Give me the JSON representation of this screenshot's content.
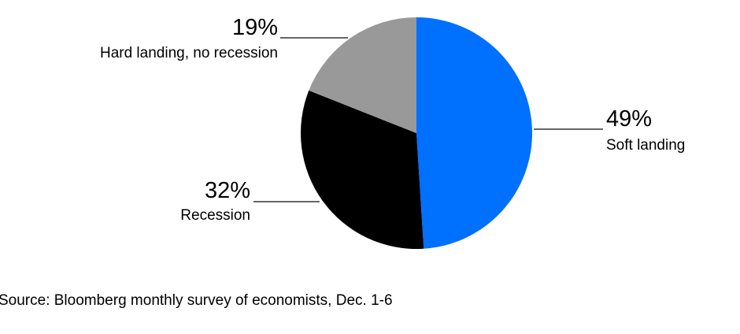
{
  "chart_data": {
    "type": "pie",
    "title": "",
    "slices": [
      {
        "label": "Soft landing",
        "value": 49,
        "display": "49%",
        "color": "#0070ff"
      },
      {
        "label": "Recession",
        "value": 32,
        "display": "32%",
        "color": "#000000"
      },
      {
        "label": "Hard landing, no recession",
        "value": 19,
        "display": "19%",
        "color": "#999999"
      }
    ],
    "start": "12 o'clock",
    "direction": "clockwise",
    "legend": "none (labels with leader lines)"
  },
  "source": "Source: Bloomberg monthly survey of economists, Dec. 1-6"
}
